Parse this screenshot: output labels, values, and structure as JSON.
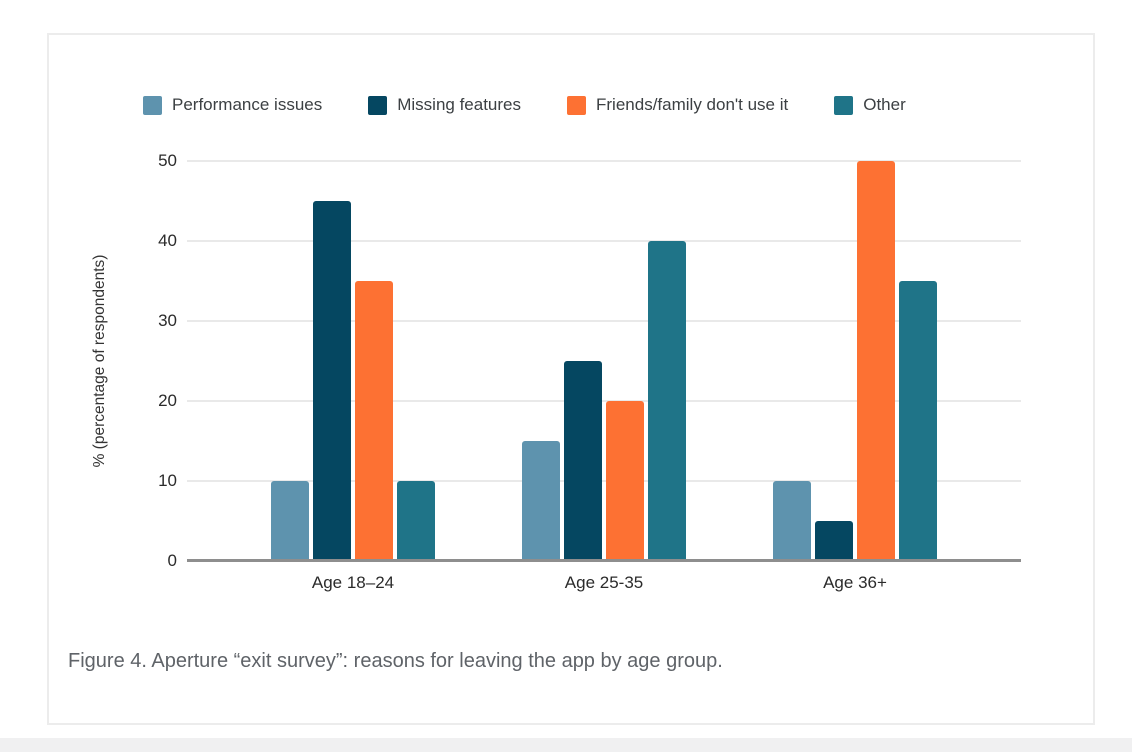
{
  "figure": {
    "caption": "Figure 4. Aperture “exit survey”: reasons for leaving the app by age group."
  },
  "chart_data": {
    "type": "bar",
    "title": "",
    "categories": [
      "Age 18–24",
      "Age 25-35",
      "Age 36+"
    ],
    "series": [
      {
        "name": "Performance issues",
        "color": "#5e93ae",
        "values": [
          10,
          15,
          10
        ]
      },
      {
        "name": "Missing features",
        "color": "#054761",
        "values": [
          45,
          25,
          5
        ]
      },
      {
        "name": "Friends/family don't use it",
        "color": "#fd7133",
        "values": [
          35,
          20,
          50
        ]
      },
      {
        "name": "Other",
        "color": "#1f7488",
        "values": [
          10,
          40,
          35
        ]
      }
    ],
    "xlabel": "",
    "ylabel": "% (percentage of respondents)",
    "ylim": [
      0,
      50
    ],
    "yticks": [
      0,
      10,
      20,
      30,
      40,
      50
    ],
    "grid": true,
    "legend_position": "top"
  },
  "colors": {
    "grid_line": "#e9e9e9",
    "axis_line": "#8e8e8e",
    "tick_label": "#2b2b2b",
    "legend_label": "#3c4043",
    "caption": "#5f6368",
    "card_border": "#ececec",
    "page_strip": "#f0f0f1"
  }
}
